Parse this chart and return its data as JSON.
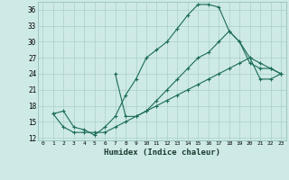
{
  "xlabel": "Humidex (Indice chaleur)",
  "bg_color": "#ceeae6",
  "grid_color": "#aacfca",
  "line_color": "#1a6b5a",
  "xlim": [
    -0.5,
    23.5
  ],
  "ylim": [
    11.5,
    37.5
  ],
  "yticks": [
    12,
    15,
    18,
    21,
    24,
    27,
    30,
    33,
    36
  ],
  "xticks": [
    0,
    1,
    2,
    3,
    4,
    5,
    6,
    7,
    8,
    9,
    10,
    11,
    12,
    13,
    14,
    15,
    16,
    17,
    18,
    19,
    20,
    21,
    22,
    23
  ],
  "line1_x": [
    1,
    2,
    3,
    4,
    5,
    6,
    7,
    8,
    9,
    10,
    11,
    12,
    13,
    14,
    15,
    16,
    17,
    18,
    19,
    20,
    21,
    22,
    23
  ],
  "line1_y": [
    16.5,
    17,
    14,
    13.5,
    12.5,
    14,
    16,
    20,
    23,
    27,
    28.5,
    30,
    32.5,
    35,
    37,
    37,
    36.5,
    32,
    30,
    27,
    26,
    25,
    24
  ],
  "line2_x": [
    1,
    2,
    3,
    4,
    5,
    6,
    7,
    8,
    9,
    10,
    11,
    12,
    13,
    14,
    15,
    16,
    17,
    18,
    19,
    20,
    21,
    22,
    23
  ],
  "line2_y": [
    16.5,
    14,
    13,
    13,
    13,
    13,
    14,
    15,
    16,
    17,
    18,
    19,
    20,
    21,
    22,
    23,
    24,
    25,
    26,
    27,
    23,
    23,
    24
  ],
  "line3_x": [
    7,
    8,
    9,
    10,
    11,
    12,
    13,
    14,
    15,
    16,
    17,
    18,
    19,
    20,
    21,
    22,
    23
  ],
  "line3_y": [
    24,
    16,
    16,
    17,
    19,
    21,
    23,
    25,
    27,
    28,
    30,
    32,
    30,
    26,
    25,
    25,
    24
  ]
}
